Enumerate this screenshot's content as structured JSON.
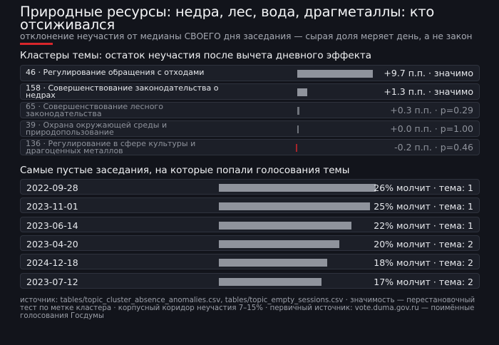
{
  "header": {
    "title": "Природные ресурсы: недра, лес, вода, драгметаллы: кто отсиживался",
    "subtitle": "отклонение неучастия от медианы СВОЕГО дня заседания — сырая доля меряет день, а не закон"
  },
  "colors": {
    "accent": "#d9262b",
    "bar_significant": "#8f939c",
    "bar_faded": "#6f737b",
    "bar_negative": "#a8242a"
  },
  "chart_data": [
    {
      "type": "bar",
      "orientation": "horizontal",
      "title": "Кластеры темы: остаток неучастия после вычета дневного эффекта",
      "rows": [
        {
          "label": "46 · Регулирование обращения с отходами",
          "value": 9.7,
          "value_text": "+9.7 п.п. · значимо",
          "significant": true
        },
        {
          "label": "158 · Совершенствование законодательства о недрах",
          "value": 1.3,
          "value_text": "+1.3 п.п. · значимо",
          "significant": true
        },
        {
          "label": "65 · Совершенствование лесного законодательства",
          "value": 0.3,
          "value_text": "+0.3 п.п. · p=0.29",
          "significant": false
        },
        {
          "label": "39 · Охрана окружающей среды и природопользование",
          "value": 0.0,
          "value_text": "+0.0 п.п. · p=1.00",
          "significant": false
        },
        {
          "label": "136 · Регулирование в сфере культуры и драгоценных металлов",
          "value": -0.2,
          "value_text": "-0.2 п.п. · p=0.46",
          "significant": false
        }
      ]
    },
    {
      "type": "bar",
      "orientation": "horizontal",
      "title": "Самые пустые заседания, на которые попали голосования темы",
      "rows": [
        {
          "label": "2022-09-28",
          "value": 26,
          "value_text": "26% молчит · тема: 1"
        },
        {
          "label": "2023-11-01",
          "value": 25,
          "value_text": "25% молчит · тема: 1"
        },
        {
          "label": "2023-06-14",
          "value": 22,
          "value_text": "22% молчит · тема: 1"
        },
        {
          "label": "2023-04-20",
          "value": 20,
          "value_text": "20% молчит · тема: 2"
        },
        {
          "label": "2024-12-18",
          "value": 18,
          "value_text": "18% молчит · тема: 2"
        },
        {
          "label": "2023-07-12",
          "value": 17,
          "value_text": "17% молчит · тема: 2"
        }
      ]
    }
  ],
  "footer": {
    "text": "источник: tables/topic_cluster_absence_anomalies.csv, tables/topic_empty_sessions.csv · значимость — перестановочный тест по метке кластера · корпусный коридор неучастия 7–15% · первичный источник: vote.duma.gov.ru — поимённые голосования Госдумы"
  }
}
